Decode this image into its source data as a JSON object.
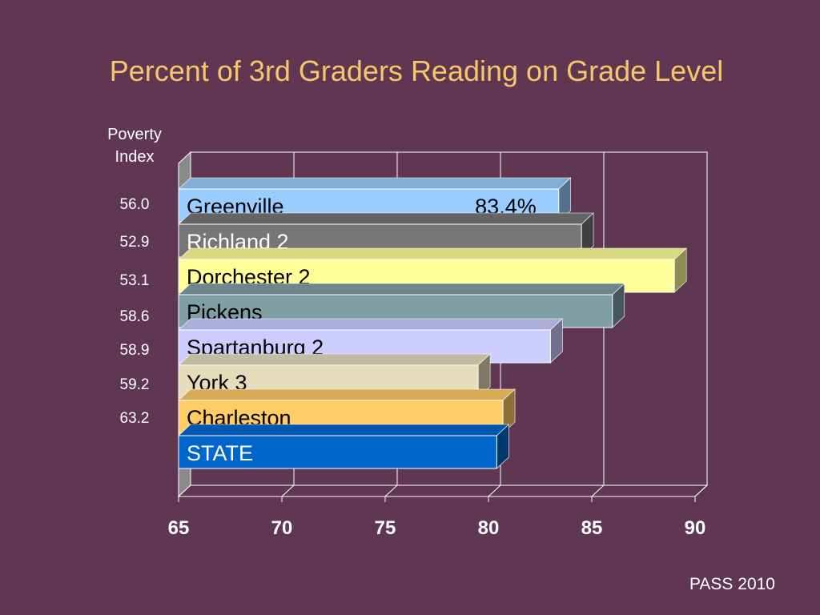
{
  "title": "Percent of 3rd Graders Reading on Grade Level",
  "poverty_header": [
    "Poverty",
    "Index"
  ],
  "poverty_index": [
    "56.0",
    "52.9",
    "53.1",
    "58.6",
    "58.9",
    "59.2",
    "63.2"
  ],
  "source": "PASS 2010",
  "chart_data": {
    "type": "bar",
    "orientation": "horizontal",
    "title": "Percent of 3rd Graders Reading on Grade Level",
    "categories": [
      "Greenville",
      "Richland 2",
      "Dorchester 2",
      "Pickens",
      "Spartanburg 2",
      "York 3",
      "Charleston",
      "STATE"
    ],
    "values": [
      83.4,
      84.5,
      89.0,
      86.0,
      83.0,
      79.5,
      80.7,
      80.4
    ],
    "data_labels": [
      "83.4%",
      "",
      "",
      "",
      "",
      "",
      "",
      ""
    ],
    "bar_colors": [
      "#99ccff",
      "#767676",
      "#ffff99",
      "#7f9fa5",
      "#ccccff",
      "#e5dcbb",
      "#ffcc66",
      "#0066cc"
    ],
    "label_colors": [
      "#000000",
      "#ffffff",
      "#000000",
      "#000000",
      "#000000",
      "#000000",
      "#000000",
      "#ffffff"
    ],
    "xlim": [
      65,
      90
    ],
    "xticks": [
      "65",
      "70",
      "75",
      "80",
      "85",
      "90"
    ],
    "grid": true
  }
}
